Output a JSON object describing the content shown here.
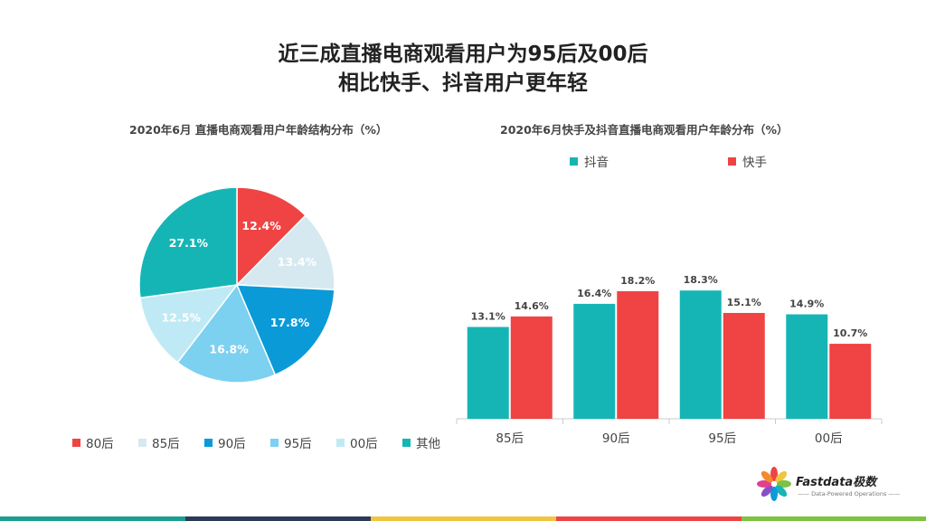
{
  "title": {
    "line1": "近三成直播电商观看用户为95后及00后",
    "line2": "相比快手、抖音用户更年轻"
  },
  "chart_data": [
    {
      "type": "pie",
      "title": "2020年6月 直播电商观看用户年龄结构分布（%）",
      "unit": "%",
      "legend_position": "bottom",
      "slices": [
        {
          "label": "80后",
          "value": 12.4,
          "display": "12.4%",
          "color": "#F04343"
        },
        {
          "label": "85后",
          "value": 13.4,
          "display": "13.4%",
          "color": "#D6E9F0"
        },
        {
          "label": "90后",
          "value": 17.8,
          "display": "17.8%",
          "color": "#0A9AD8"
        },
        {
          "label": "95后",
          "value": 16.8,
          "display": "16.8%",
          "color": "#7CD0F0"
        },
        {
          "label": "00后",
          "value": 12.5,
          "display": "12.5%",
          "color": "#BFEAF5"
        },
        {
          "label": "其他",
          "value": 27.1,
          "display": "27.1%",
          "color": "#16B5B5"
        }
      ]
    },
    {
      "type": "bar",
      "title": "2020年6月快手及抖音直播电商观看用户年龄分布（%）",
      "unit": "%",
      "legend_position": "top",
      "categories": [
        "85后",
        "90后",
        "95后",
        "00后"
      ],
      "ylim": [
        0,
        20
      ],
      "grid": false,
      "series": [
        {
          "name": "抖音",
          "color": "#16B5B5",
          "values": [
            13.1,
            16.4,
            18.3,
            14.9
          ],
          "labels": [
            "13.1%",
            "16.4%",
            "18.3%",
            "14.9%"
          ]
        },
        {
          "name": "快手",
          "color": "#F04343",
          "values": [
            14.6,
            18.2,
            15.1,
            10.7
          ],
          "labels": [
            "14.6%",
            "18.2%",
            "15.1%",
            "10.7%"
          ]
        }
      ]
    }
  ],
  "logo": {
    "name": "Fastdata极数",
    "tagline": "—— Data-Powered Operations ——"
  },
  "footer_colors": [
    "#1A9E8F",
    "#2B3A55",
    "#F0C540",
    "#F04343",
    "#7DC242"
  ]
}
